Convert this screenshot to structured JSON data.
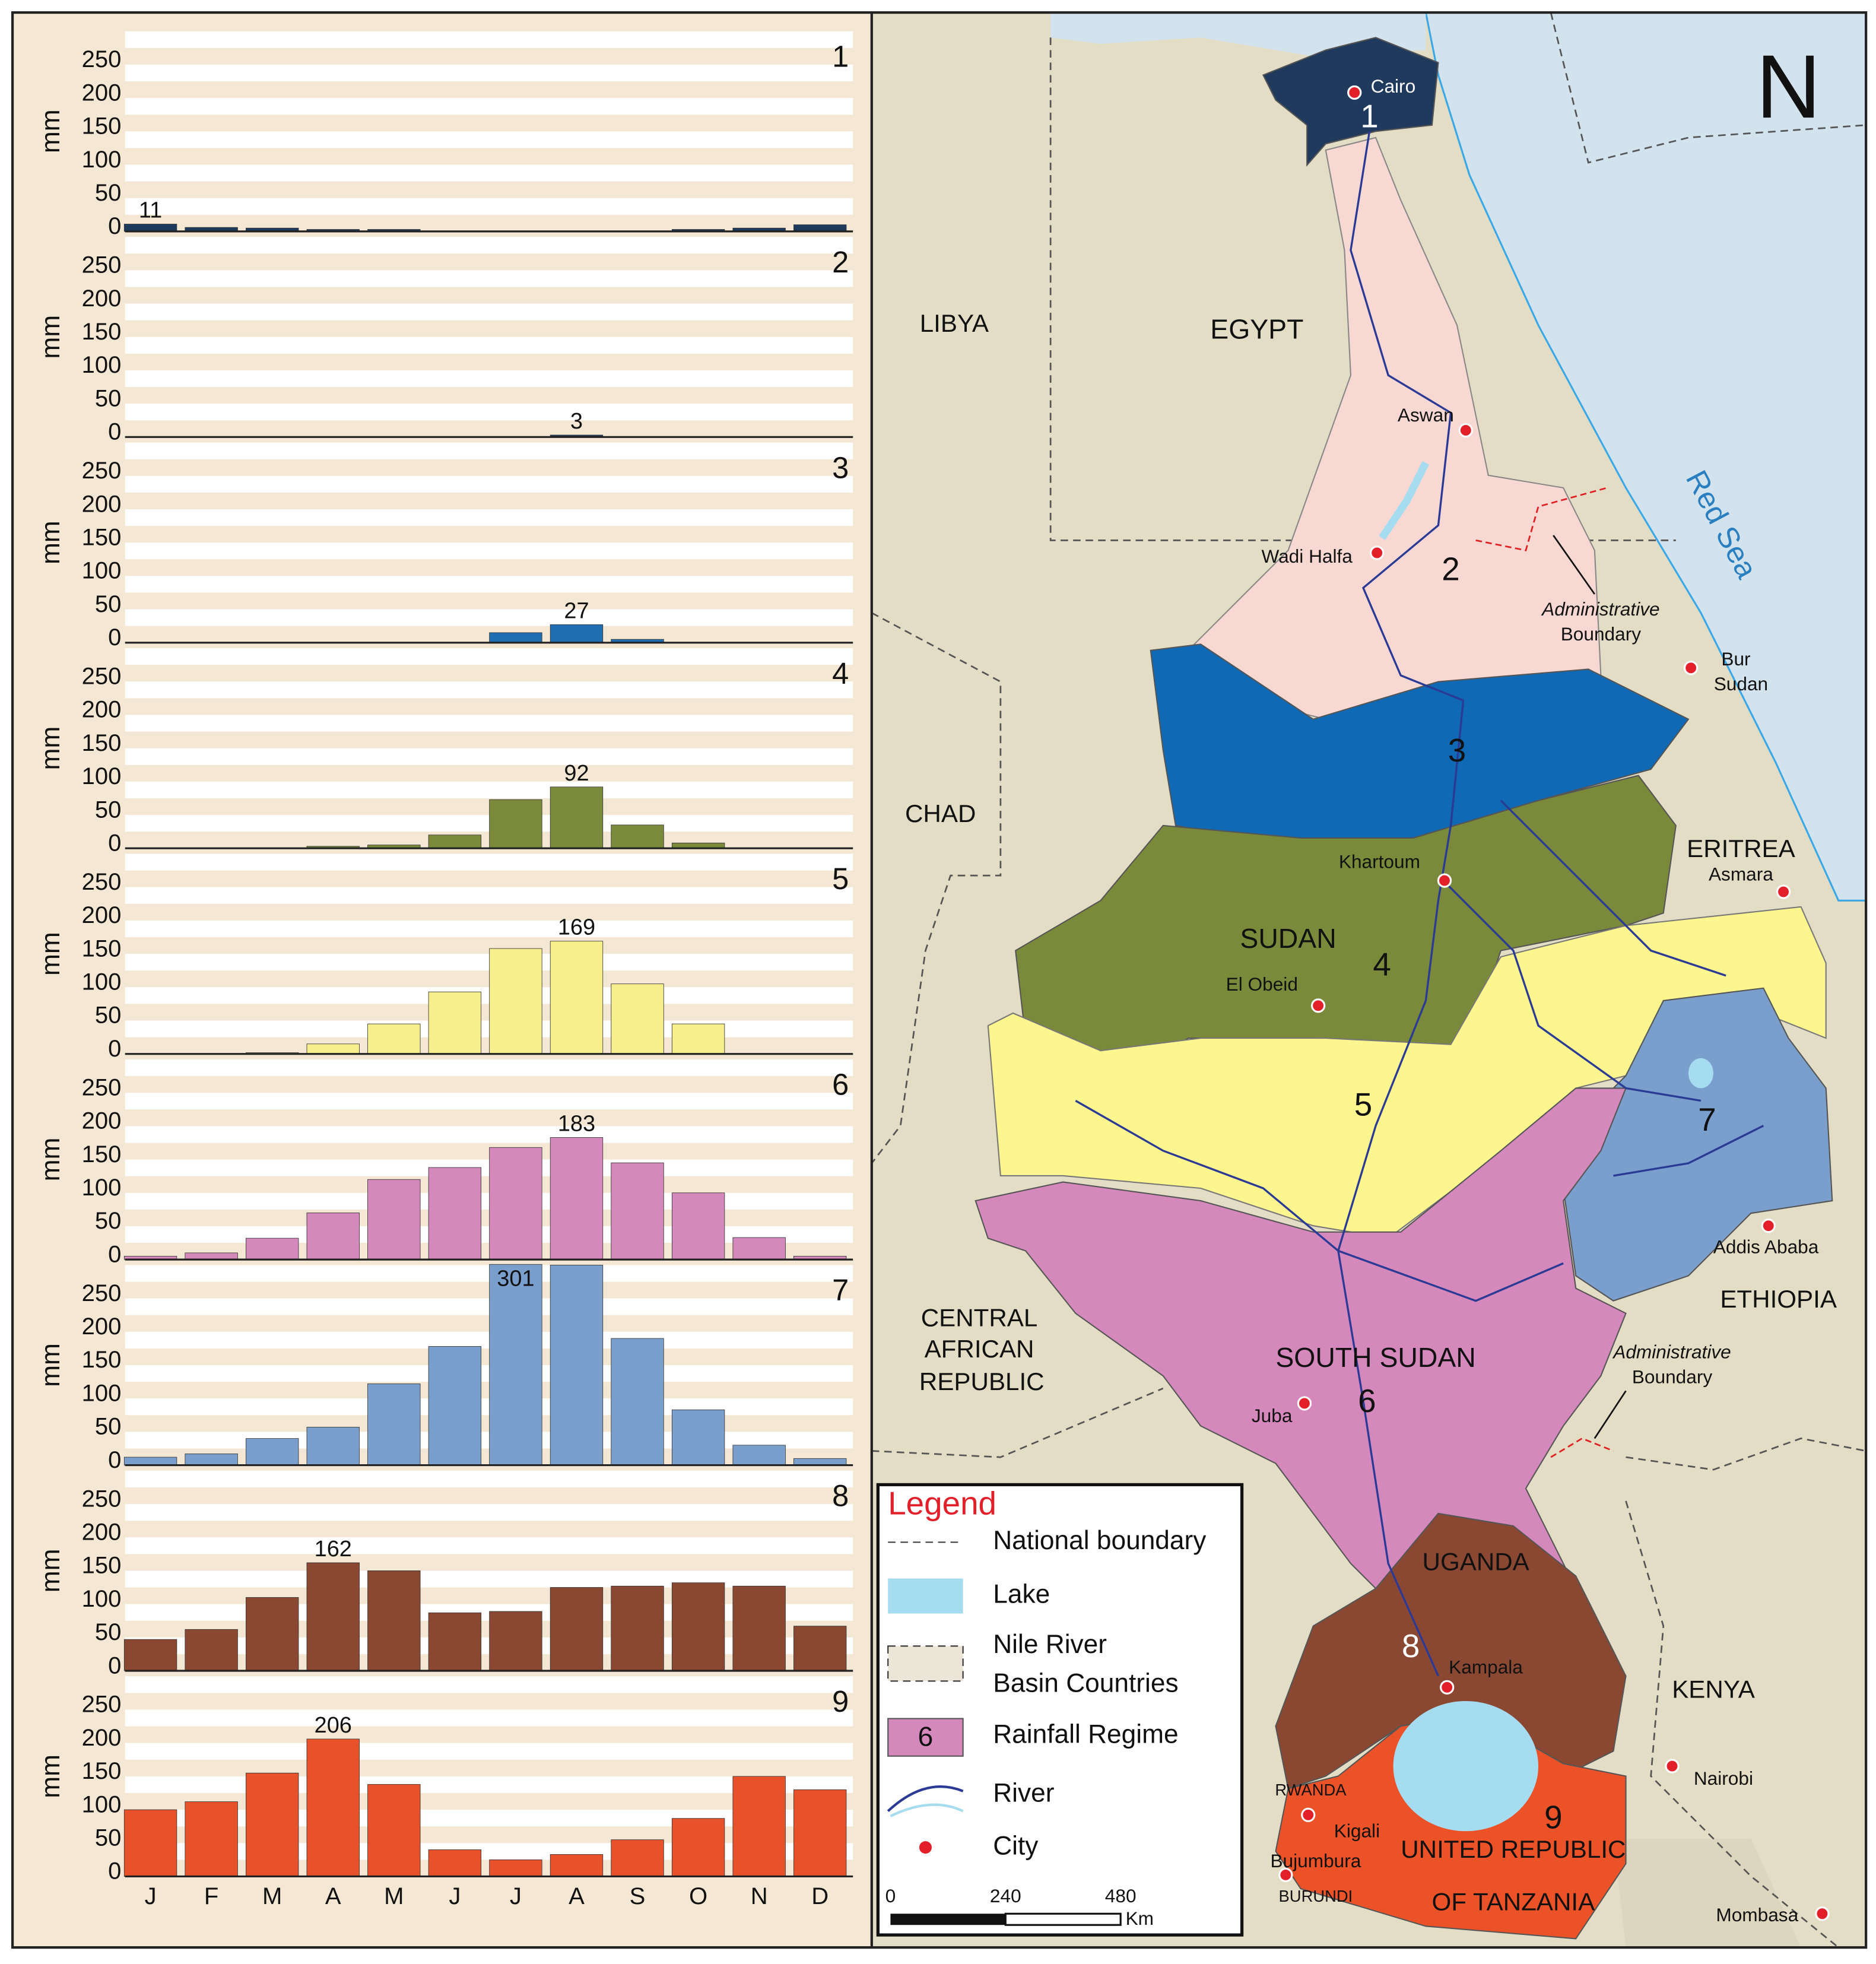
{
  "chart_data": [
    {
      "type": "bar",
      "title": "1",
      "y_label": "mm",
      "color": "#1c3a5e",
      "values": [
        11,
        6,
        5,
        3,
        3,
        0,
        0,
        0,
        0,
        3,
        5,
        10
      ],
      "value_labels": [
        "11",
        null,
        null,
        null,
        null,
        null,
        null,
        null,
        null,
        null,
        null,
        null
      ],
      "ylim": [
        0,
        300
      ],
      "yticks": [
        0,
        50,
        100,
        150,
        200,
        250
      ]
    },
    {
      "type": "bar",
      "title": "2",
      "y_label": "mm",
      "color": "#1c3a5e",
      "values": [
        0,
        0,
        0,
        0,
        0,
        0,
        0,
        3,
        0,
        0,
        0,
        0
      ],
      "value_labels": [
        null,
        null,
        null,
        null,
        null,
        null,
        null,
        "3",
        null,
        null,
        null,
        null
      ],
      "ylim": [
        0,
        300
      ],
      "yticks": [
        0,
        50,
        100,
        150,
        200,
        250
      ]
    },
    {
      "type": "bar",
      "title": "3",
      "y_label": "mm",
      "color": "#1f6db3",
      "values": [
        0,
        0,
        0,
        0,
        0,
        0,
        15,
        27,
        5,
        0,
        0,
        0
      ],
      "value_labels": [
        null,
        null,
        null,
        null,
        null,
        null,
        null,
        "27",
        null,
        null,
        null,
        null
      ],
      "ylim": [
        0,
        300
      ],
      "yticks": [
        0,
        50,
        100,
        150,
        200,
        250
      ]
    },
    {
      "type": "bar",
      "title": "4",
      "y_label": "mm",
      "color": "#7a8a3a",
      "values": [
        0,
        0,
        0,
        3,
        5,
        20,
        73,
        92,
        35,
        8,
        0,
        0
      ],
      "value_labels": [
        null,
        null,
        null,
        null,
        null,
        null,
        null,
        "92",
        null,
        null,
        null,
        null
      ],
      "ylim": [
        0,
        300
      ],
      "yticks": [
        0,
        50,
        100,
        150,
        200,
        250
      ]
    },
    {
      "type": "bar",
      "title": "5",
      "y_label": "mm",
      "color": "#f7ee8c",
      "values": [
        0,
        0,
        2,
        15,
        45,
        93,
        158,
        169,
        105,
        45,
        0,
        0
      ],
      "value_labels": [
        null,
        null,
        null,
        null,
        null,
        null,
        null,
        "169",
        null,
        null,
        null,
        null
      ],
      "ylim": [
        0,
        300
      ],
      "yticks": [
        0,
        50,
        100,
        150,
        200,
        250
      ]
    },
    {
      "type": "bar",
      "title": "6",
      "y_label": "mm",
      "color": "#d488bc",
      "values": [
        5,
        10,
        32,
        70,
        120,
        138,
        168,
        183,
        145,
        100,
        33,
        5
      ],
      "value_labels": [
        null,
        null,
        null,
        null,
        null,
        null,
        null,
        "183",
        null,
        null,
        null,
        null
      ],
      "ylim": [
        0,
        300
      ],
      "yticks": [
        0,
        50,
        100,
        150,
        200,
        250
      ]
    },
    {
      "type": "bar",
      "title": "7",
      "y_label": "mm",
      "color": "#7b9fcd",
      "values": [
        12,
        17,
        40,
        57,
        122,
        178,
        301,
        300,
        190,
        83,
        30,
        10
      ],
      "value_labels": [
        null,
        null,
        null,
        null,
        null,
        null,
        "301",
        null,
        null,
        null,
        null,
        null
      ],
      "ylim": [
        0,
        300
      ],
      "yticks": [
        0,
        50,
        100,
        150,
        200,
        250
      ]
    },
    {
      "type": "bar",
      "title": "8",
      "y_label": "mm",
      "color": "#8a4832",
      "values": [
        47,
        62,
        110,
        162,
        150,
        87,
        89,
        125,
        127,
        132,
        127,
        67
      ],
      "value_labels": [
        null,
        null,
        null,
        "162",
        null,
        null,
        null,
        null,
        null,
        null,
        null,
        null
      ],
      "ylim": [
        0,
        300
      ],
      "yticks": [
        0,
        50,
        100,
        150,
        200,
        250
      ]
    },
    {
      "type": "bar",
      "title": "9",
      "y_label": "mm",
      "color": "#e8522a",
      "categories": [
        "J",
        "F",
        "M",
        "A",
        "M",
        "J",
        "J",
        "A",
        "S",
        "O",
        "N",
        "D"
      ],
      "values": [
        100,
        112,
        155,
        206,
        138,
        40,
        25,
        33,
        55,
        87,
        150,
        130
      ],
      "value_labels": [
        null,
        null,
        null,
        "206",
        null,
        null,
        null,
        null,
        null,
        null,
        null,
        null
      ],
      "ylim": [
        0,
        300
      ],
      "yticks": [
        0,
        50,
        100,
        150,
        200,
        250
      ]
    }
  ],
  "map": {
    "north": "N",
    "red_sea": "Red Sea",
    "countries": [
      "LIBYA",
      "EGYPT",
      "CHAD",
      "SUDAN",
      "ERITREA",
      "ETHIOPIA",
      "CENTRAL",
      "AFRICAN",
      "REPUBLIC",
      "SOUTH SUDAN",
      "UGANDA",
      "KENYA",
      "UNITED REPUBLIC",
      "OF TANZANIA",
      "RWANDA",
      "BURUNDI"
    ],
    "cities": [
      "Cairo",
      "Aswan",
      "Wadi Halfa",
      "Bur",
      "Sudan",
      "Khartoum",
      "Asmara",
      "El Obeid",
      "Addis Ababa",
      "Juba",
      "Kampala",
      "Nairobi",
      "Kigali",
      "Bujumbura",
      "Mombasa"
    ],
    "regions": [
      "1",
      "2",
      "3",
      "4",
      "5",
      "6",
      "7",
      "8",
      "9"
    ],
    "admin_boundary": [
      [
        "Administrative",
        "Boundary"
      ],
      [
        "Administrative",
        "Boundary"
      ]
    ],
    "legend": {
      "title": "Legend",
      "items": [
        "National boundary",
        "Lake",
        "Nile River",
        "Basin Countries",
        "Rainfall Regime",
        "River",
        "City"
      ],
      "sample": "6",
      "scale": [
        0,
        240,
        480
      ],
      "scale_unit": "Km"
    }
  }
}
